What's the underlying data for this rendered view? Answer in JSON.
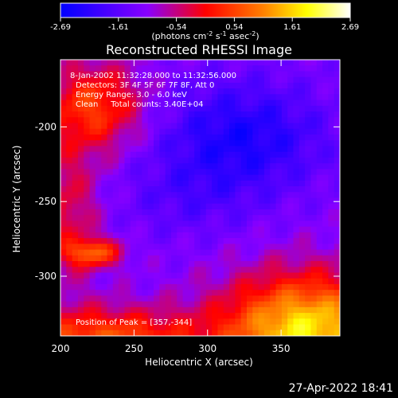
{
  "chart_data": {
    "type": "heatmap",
    "title": "Reconstructed RHESSI Image",
    "xlabel": "Heliocentric X (arcsec)",
    "ylabel": "Heliocentric Y (arcsec)",
    "xlim": [
      200,
      390
    ],
    "ylim": [
      -340,
      -155
    ],
    "xticks": [
      200,
      250,
      300,
      350
    ],
    "yticks": [
      -200,
      -250,
      -300
    ],
    "colorbar": {
      "ticks": [
        "-2.69",
        "-1.61",
        "-0.54",
        "0.54",
        "1.61",
        "2.69"
      ],
      "range": [
        -2.69,
        2.69
      ],
      "unit_main": "(photons cm",
      "unit_exp1": "-2",
      "unit_mid": " s",
      "unit_exp2": "-1",
      "unit_end": " asec",
      "unit_exp3": "-2",
      "unit_close": ")"
    },
    "annotations": [
      "8-Jan-2002 11:32:28.000 to 11:32:56.000",
      "Detectors: 3F 4F 5F 6F 7F 8F, Att 0",
      "Energy Range: 3.0 - 6.0 keV",
      "Clean     Total counts: 3.40E+04"
    ],
    "peak_label": "Position of Peak = [357,-344]",
    "colormap": [
      "#0000ff",
      "#7a00ff",
      "#ff0000",
      "#ff8000",
      "#ffff00",
      "#ffffff"
    ],
    "grid": false
  },
  "footer": {
    "date": "27-Apr-2022 18:41"
  }
}
